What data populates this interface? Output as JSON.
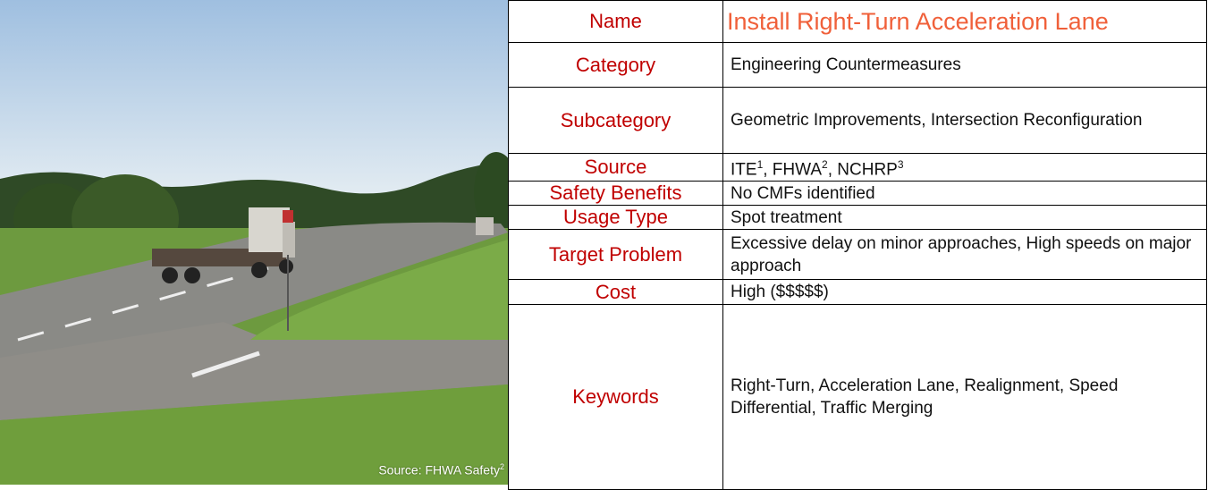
{
  "image": {
    "caption": "Source: FHWA Safety",
    "caption_note": "2"
  },
  "table": {
    "rows": [
      {
        "label": "Name",
        "value": "Install Right-Turn Acceleration Lane"
      },
      {
        "label": "Category",
        "value": "Engineering Countermeasures"
      },
      {
        "label": "Subcategory",
        "value": "Geometric Improvements, Intersection Reconfiguration"
      },
      {
        "label": "Source",
        "sources": [
          {
            "text": "ITE",
            "note": "1"
          },
          {
            "text": ", FHWA",
            "note": "2"
          },
          {
            "text": ", NCHRP",
            "note": "3"
          }
        ]
      },
      {
        "label": "Safety Benefits",
        "value": "No CMFs identified"
      },
      {
        "label": "Usage Type",
        "value": "Spot treatment"
      },
      {
        "label": "Target Problem",
        "value": "Excessive delay on minor approaches, High speeds on major approach"
      },
      {
        "label": "Cost",
        "value": "High ($$$$$)"
      },
      {
        "label": "Keywords",
        "value": "Right-Turn, Acceleration Lane, Realignment, Speed Differential, Traffic Merging"
      }
    ]
  }
}
